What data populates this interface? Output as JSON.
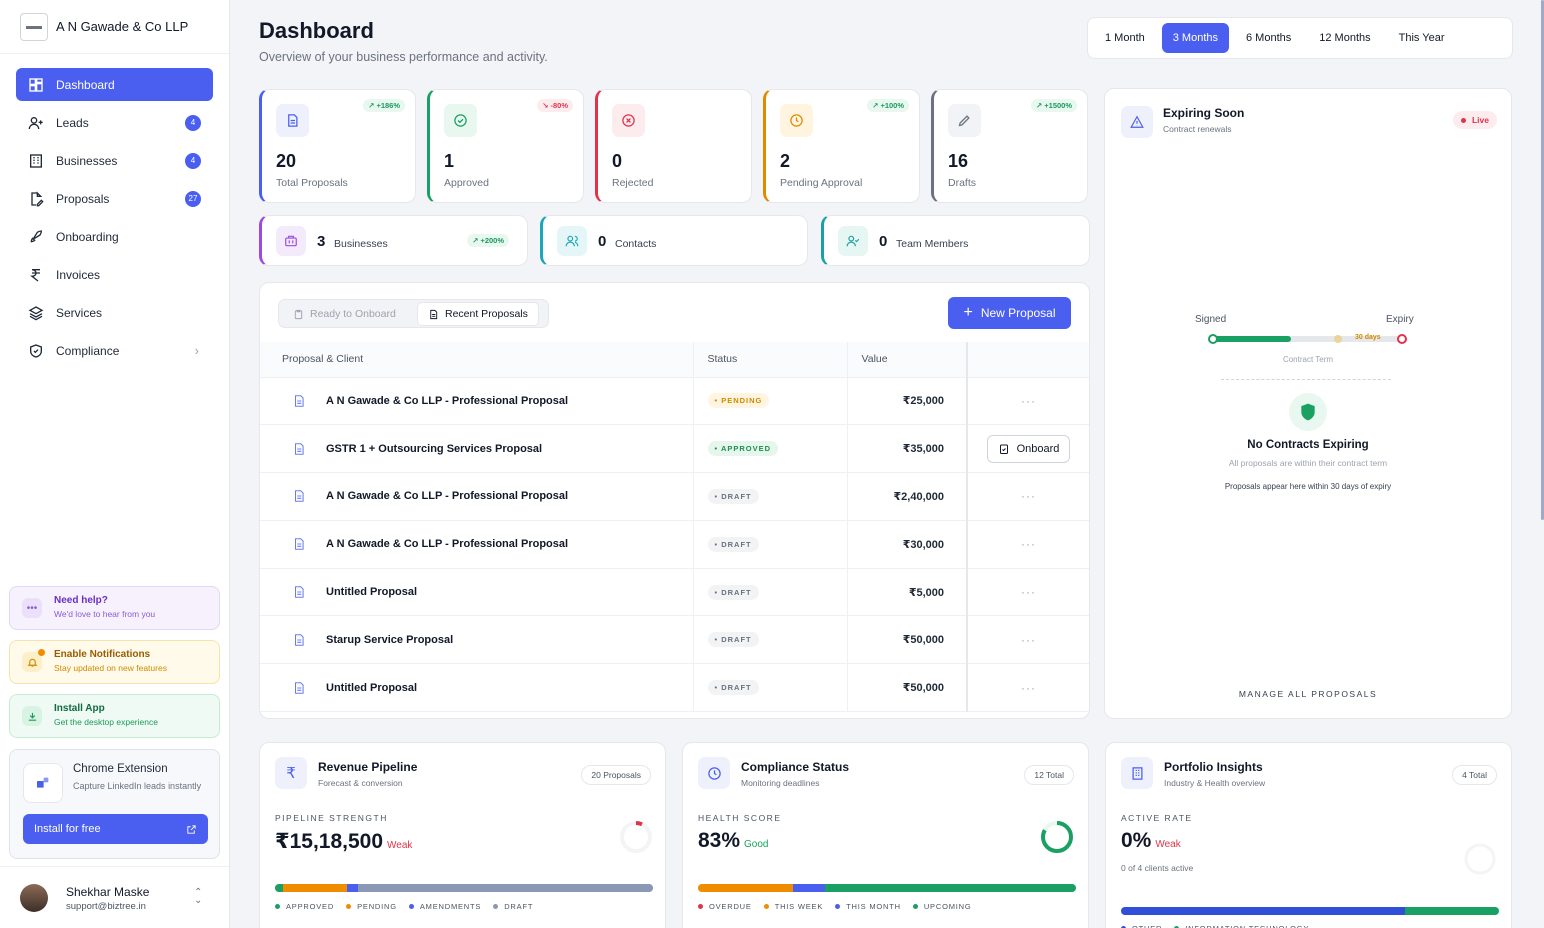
{
  "brand": {
    "name": "A N Gawade & Co LLP"
  },
  "sidebar": {
    "items": [
      {
        "label": "Dashboard",
        "icon": "dashboard-icon",
        "active": true
      },
      {
        "label": "Leads",
        "icon": "user-plus-icon",
        "badge": "4"
      },
      {
        "label": "Businesses",
        "icon": "building-icon",
        "badge": "4"
      },
      {
        "label": "Proposals",
        "icon": "file-edit-icon",
        "badge": "27"
      },
      {
        "label": "Onboarding",
        "icon": "rocket-icon"
      },
      {
        "label": "Invoices",
        "icon": "rupee-icon"
      },
      {
        "label": "Services",
        "icon": "layers-icon"
      },
      {
        "label": "Compliance",
        "icon": "shield-check-icon",
        "chevron": true
      }
    ]
  },
  "help": {
    "title": "Need help?",
    "subtitle": "We'd love to hear from you"
  },
  "notify": {
    "title": "Enable Notifications",
    "subtitle": "Stay updated on new features"
  },
  "install": {
    "title": "Install App",
    "subtitle": "Get the desktop experience"
  },
  "extension": {
    "title": "Chrome Extension",
    "subtitle": "Capture LinkedIn leads instantly",
    "button": "Install for free"
  },
  "user": {
    "name": "Shekhar Maske",
    "email": "support@biztree.in"
  },
  "header": {
    "title": "Dashboard",
    "subtitle": "Overview of your business performance and activity."
  },
  "ranges": [
    {
      "label": "1 Month"
    },
    {
      "label": "3 Months",
      "active": true
    },
    {
      "label": "6 Months"
    },
    {
      "label": "12 Months"
    },
    {
      "label": "This Year"
    }
  ],
  "stats": [
    {
      "value": "20",
      "label": "Total Proposals",
      "trend": "+186%",
      "dir": "up",
      "color": "#4a5ff0",
      "bg": "#eef0fb"
    },
    {
      "value": "1",
      "label": "Approved",
      "trend": "-80%",
      "dir": "dn",
      "color": "#1aa063",
      "bg": "#e8f7ef"
    },
    {
      "value": "0",
      "label": "Rejected",
      "trend": "",
      "dir": "",
      "color": "#e0344c",
      "bg": "#fdecee"
    },
    {
      "value": "2",
      "label": "Pending Approval",
      "trend": "+100%",
      "dir": "up",
      "color": "#e08a00",
      "bg": "#fff4e0"
    },
    {
      "value": "16",
      "label": "Drafts",
      "trend": "+1500%",
      "dir": "up",
      "color": "#6b7280",
      "bg": "#f1f3f6"
    }
  ],
  "stats2": [
    {
      "value": "3",
      "label": "Businesses",
      "trend": "+200%",
      "color": "#9b4ae0",
      "bg": "#f3eafc"
    },
    {
      "value": "0",
      "label": "Contacts",
      "color": "#19a6b8",
      "bg": "#e5f6f8"
    },
    {
      "value": "0",
      "label": "Team Members",
      "color": "#1aa0a0",
      "bg": "#e5f6f3"
    }
  ],
  "proposals": {
    "tabs": [
      "Ready to Onboard",
      "Recent Proposals"
    ],
    "new_button": "New Proposal",
    "columns": [
      "Proposal & Client",
      "Status",
      "Value",
      ""
    ],
    "rows": [
      {
        "title": "A N Gawade & Co LLP - Professional Proposal",
        "status": "PENDING",
        "value": "₹25,000",
        "action": "···"
      },
      {
        "title": "GSTR 1 + Outsourcing Services Proposal",
        "status": "APPROVED",
        "value": "₹35,000",
        "action": "Onboard"
      },
      {
        "title": "A N Gawade & Co LLP - Professional Proposal",
        "status": "DRAFT",
        "value": "₹2,40,000",
        "action": "···"
      },
      {
        "title": "A N Gawade & Co LLP - Professional Proposal",
        "status": "DRAFT",
        "value": "₹30,000",
        "action": "···"
      },
      {
        "title": "Untitled Proposal",
        "status": "DRAFT",
        "value": "₹5,000",
        "action": "···"
      },
      {
        "title": "Starup Service Proposal",
        "status": "DRAFT",
        "value": "₹50,000",
        "action": "···"
      },
      {
        "title": "Untitled Proposal",
        "status": "DRAFT",
        "value": "₹50,000",
        "action": "···"
      }
    ]
  },
  "expiring": {
    "title": "Expiring Soon",
    "subtitle": "Contract renewals",
    "live": "Live",
    "signed": "Signed",
    "expiry": "Expiry",
    "days": "30 days",
    "term": "Contract Term",
    "empty_title": "No Contracts Expiring",
    "empty_sub": "All proposals are within their contract term",
    "note": "Proposals appear here within 30 days of expiry",
    "manage": "MANAGE ALL PROPOSALS"
  },
  "revenue": {
    "title": "Revenue Pipeline",
    "subtitle": "Forecast & conversion",
    "count": "20 Proposals",
    "metric_label": "PIPELINE STRENGTH",
    "value": "₹15,18,500",
    "grade": "Weak",
    "segments": [
      {
        "pct": 0.02,
        "color": "#1aa063"
      },
      {
        "pct": 0.17,
        "color": "#f08c00"
      },
      {
        "pct": 0.03,
        "color": "#4a5ff0"
      },
      {
        "pct": 0.78,
        "color": "#8a98b5"
      }
    ],
    "legend": [
      {
        "label": "APPROVED",
        "color": "#1aa063"
      },
      {
        "label": "PENDING",
        "color": "#f08c00"
      },
      {
        "label": "AMENDMENTS",
        "color": "#4a5ff0"
      },
      {
        "label": "DRAFT",
        "color": "#8a98b5"
      }
    ]
  },
  "compliance": {
    "title": "Compliance Status",
    "subtitle": "Monitoring deadlines",
    "count": "12 Total",
    "metric_label": "HEALTH SCORE",
    "value": "83%",
    "grade": "Good",
    "score": 0.83,
    "segments": [
      {
        "pct": 0.25,
        "color": "#f08c00"
      },
      {
        "pct": 0.085,
        "color": "#4a5ff0"
      },
      {
        "pct": 0.665,
        "color": "#1aa063"
      }
    ],
    "legend": [
      {
        "label": "OVERDUE",
        "color": "#e0344c"
      },
      {
        "label": "THIS WEEK",
        "color": "#f08c00"
      },
      {
        "label": "THIS MONTH",
        "color": "#4a5ff0"
      },
      {
        "label": "UPCOMING",
        "color": "#1aa063"
      }
    ]
  },
  "portfolio": {
    "title": "Portfolio Insights",
    "subtitle": "Industry & Health overview",
    "count": "4 Total",
    "metric_label": "ACTIVE RATE",
    "value": "0%",
    "grade": "Weak",
    "note": "0 of 4 clients active",
    "segments": [
      {
        "pct": 0.75,
        "color": "#2f4fd8"
      },
      {
        "pct": 0.25,
        "color": "#1aa063"
      }
    ],
    "legend": [
      {
        "label": "OTHER",
        "color": "#2f4fd8"
      },
      {
        "label": "INFORMATION TECHNOLOGY",
        "color": "#1aa063"
      }
    ]
  }
}
